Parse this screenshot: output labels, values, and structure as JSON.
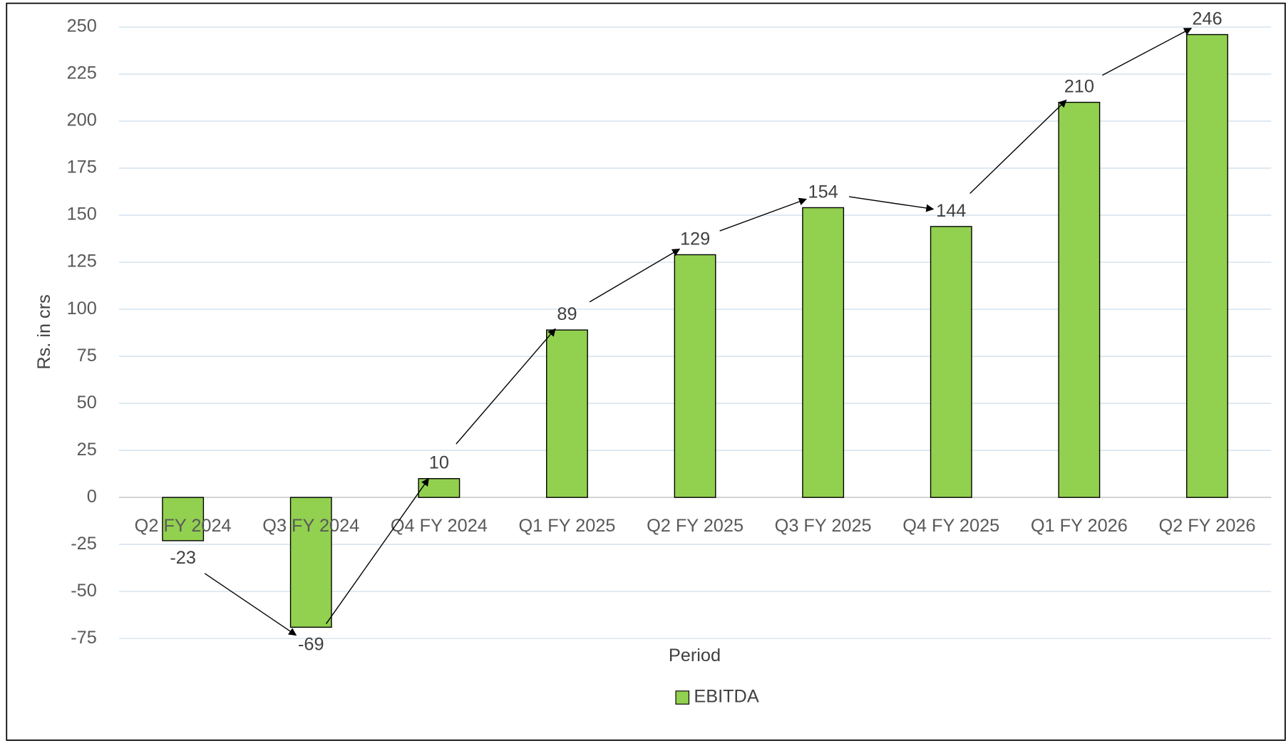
{
  "chart_data": {
    "type": "bar",
    "x_label": "Period",
    "y_label": "Rs. in crs",
    "categories": [
      "Q2 FY 2024",
      "Q3 FY 2024",
      "Q4 FY 2024",
      "Q1 FY 2025",
      "Q2 FY 2025",
      "Q3 FY 2025",
      "Q4 FY 2025",
      "Q1 FY 2026",
      "Q2 FY 2026"
    ],
    "series": [
      {
        "name": "EBITDA",
        "color": "#92d050",
        "values": [
          -23,
          -69,
          10,
          89,
          129,
          154,
          144,
          210,
          246
        ]
      }
    ],
    "ylim": [
      -75,
      250
    ],
    "yticks": [
      -75,
      -50,
      -25,
      0,
      25,
      50,
      75,
      100,
      125,
      150,
      175,
      200,
      225,
      250
    ],
    "grid": true,
    "legend": "bottom"
  }
}
